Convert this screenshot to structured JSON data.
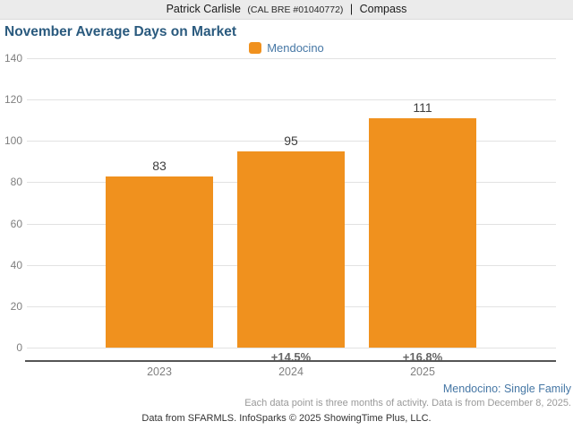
{
  "header": {
    "agent_name": "Patrick Carlisle",
    "agent_license": "(CAL BRE #01040772)",
    "separator": "|",
    "brand": "Compass"
  },
  "chart": {
    "title": "November Average Days on Market",
    "legend_label": "Mendocino"
  },
  "chart_data": {
    "type": "bar",
    "title": "November Average Days on Market",
    "series_name": "Mendocino",
    "categories": [
      "2023",
      "2024",
      "2025"
    ],
    "values": [
      83,
      95,
      111
    ],
    "value_labels": [
      "83",
      "95",
      "111"
    ],
    "pct_change": [
      "",
      "+14.5%",
      "+16.8%"
    ],
    "xlabel": "",
    "ylabel": "",
    "ylim": [
      0,
      140
    ],
    "yticks": [
      0,
      20,
      40,
      60,
      80,
      100,
      120,
      140
    ],
    "grid": true,
    "legend_position": "top-center",
    "bar_color": "#F0911E"
  },
  "footer": {
    "series_note": "Mendocino: Single Family",
    "data_note": "Each data point is three months of activity. Data is from December 8, 2025.",
    "attribution": "Data from SFARMLS. InfoSparks © 2025 ShowingTime Plus, LLC."
  },
  "colors": {
    "bar": "#F0911E",
    "title_text": "#2A5A7E",
    "legend_text": "#4677A5",
    "header_bg": "#EBEBEB",
    "gridline": "#E2E2E2",
    "axis_line": "#555555"
  }
}
